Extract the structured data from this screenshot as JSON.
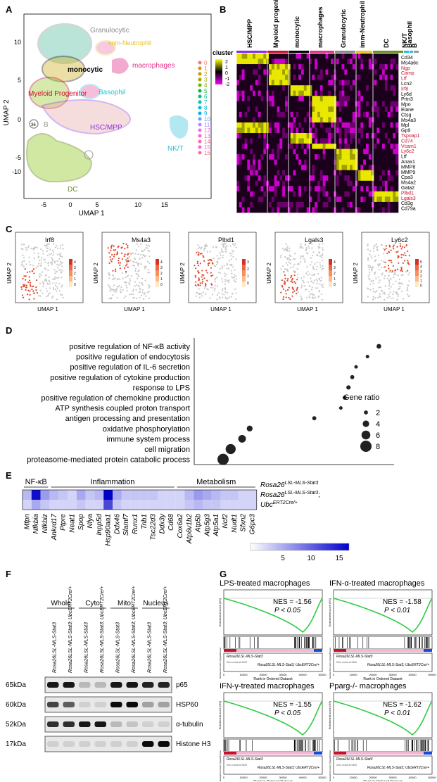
{
  "panels": {
    "A": "A",
    "B": "B",
    "C": "C",
    "D": "D",
    "E": "E",
    "F": "F",
    "G": "G"
  },
  "panelA": {
    "ylabel": "UMAP 2",
    "xlabel": "UMAP 1",
    "xticks": [
      "-5",
      "0",
      "5",
      "10",
      "15"
    ],
    "yticks": [
      "10",
      "5",
      "0",
      "-5",
      "-10"
    ],
    "clusters": [
      {
        "label": "Granulocytic",
        "color": "#8a8a8a"
      },
      {
        "label": "imm-Neutrophil",
        "color": "#e8c21a"
      },
      {
        "label": "monocytic",
        "color": "#000000"
      },
      {
        "label": "macrophages",
        "color": "#e0308a"
      },
      {
        "label": "Basophil",
        "color": "#28c0d8"
      },
      {
        "label": "Myeloid Progenitor",
        "color": "#c8102e"
      },
      {
        "label": "B",
        "color": "#999999"
      },
      {
        "label": "HSC/MPP",
        "color": "#8a2be2"
      },
      {
        "label": "NK/T",
        "color": "#28c0d8"
      },
      {
        "label": "DC",
        "color": "#6b8e23"
      }
    ],
    "legend": [
      "0",
      "1",
      "2",
      "3",
      "4",
      "5",
      "6",
      "7",
      "8",
      "9",
      "10",
      "11",
      "12",
      "13",
      "14",
      "15",
      "16"
    ],
    "legend_colors": [
      "#f8766d",
      "#e58700",
      "#c99800",
      "#a3a500",
      "#6bb100",
      "#00ba38",
      "#00bf7d",
      "#00c0af",
      "#00bcd8",
      "#00b0f6",
      "#619cff",
      "#b983ff",
      "#e76bf3",
      "#fd61d1",
      "#ff67a4",
      "#f564e3",
      "#ff6c91"
    ],
    "blob_label_36": "36"
  },
  "panelB": {
    "cluster_label": "cluster",
    "scale": [
      "2",
      "1",
      "0",
      "-1",
      "-2"
    ],
    "groups": [
      {
        "label": "HSC/MPP",
        "color": "#8a2be2"
      },
      {
        "label": "Myeloid progenitor",
        "color": "#c8102e"
      },
      {
        "label": "monocytic",
        "color": "#000000"
      },
      {
        "label": "macrophages",
        "color": "#e0308a"
      },
      {
        "label": "Granulocytic",
        "color": "#8a8a8a"
      },
      {
        "label": "imm-Neutrophil",
        "color": "#e8c21a"
      },
      {
        "label": "DC",
        "color": "#6b8e23"
      },
      {
        "label": "NK/T",
        "color": "#28c0d8"
      },
      {
        "label": "Basophil",
        "color": "#28c0d8"
      },
      {
        "label": "B",
        "color": "#999999"
      }
    ],
    "genes": [
      {
        "name": "Cd34",
        "color": "#000"
      },
      {
        "name": "Ms4a6c",
        "color": "#000"
      },
      {
        "name": "Ngp",
        "color": "#c8102e"
      },
      {
        "name": "Camp",
        "color": "#c8102e"
      },
      {
        "name": "Ltf",
        "color": "#c8102e"
      },
      {
        "name": "Lcn2",
        "color": "#000"
      },
      {
        "name": "Irf8",
        "color": "#c8102e"
      },
      {
        "name": "Ly6d",
        "color": "#000"
      },
      {
        "name": "Prtn3",
        "color": "#000"
      },
      {
        "name": "Mpo",
        "color": "#000"
      },
      {
        "name": "Elane",
        "color": "#000"
      },
      {
        "name": "Ctsg",
        "color": "#000"
      },
      {
        "name": "Ms4a3",
        "color": "#000"
      },
      {
        "name": "Mpl",
        "color": "#000"
      },
      {
        "name": "Gp9",
        "color": "#000"
      },
      {
        "name": "Tspoap1",
        "color": "#c8102e"
      },
      {
        "name": "Cd74",
        "color": "#c8102e"
      },
      {
        "name": "Vcam1",
        "color": "#c8102e"
      },
      {
        "name": "Ly6c2",
        "color": "#c8102e"
      },
      {
        "name": "Ltf",
        "color": "#000"
      },
      {
        "name": "Anax1",
        "color": "#000"
      },
      {
        "name": "MMP8",
        "color": "#000"
      },
      {
        "name": "MMP9",
        "color": "#000"
      },
      {
        "name": "Cpa3",
        "color": "#000"
      },
      {
        "name": "Ms4a2",
        "color": "#000"
      },
      {
        "name": "Gata2",
        "color": "#000"
      },
      {
        "name": "Plbd1",
        "color": "#c8102e"
      },
      {
        "name": "Lgals3",
        "color": "#c8102e"
      },
      {
        "name": "Cd3g",
        "color": "#000"
      },
      {
        "name": "Cd79a",
        "color": "#000"
      }
    ]
  },
  "panelC": {
    "ylabel": "UMAP 2",
    "xlabel": "UMAP 1",
    "plots": [
      {
        "gene": "Irf8",
        "scale": [
          "4",
          "3",
          "2",
          "1",
          "0"
        ]
      },
      {
        "gene": "Ms4a3",
        "scale": [
          "4",
          "3",
          "2",
          "1",
          "0"
        ]
      },
      {
        "gene": "Plbd1",
        "scale": [
          "3",
          "2",
          "1",
          "0"
        ]
      },
      {
        "gene": "Lgals3",
        "scale": [
          "4",
          "3",
          "2",
          "1",
          "0"
        ]
      },
      {
        "gene": "Ly6c2",
        "scale": [
          "5",
          "4",
          "3",
          "2",
          "1",
          "0"
        ]
      }
    ]
  },
  "chart_data": {
    "type": "scatter",
    "terms": [
      "positive regulation of NF-κB activity",
      "positive regulation of endocytosis",
      "positive regulation of IL-6 secretion",
      "positive regulation of cytokine production",
      "response to LPS",
      "positive regulation of chemokine production",
      "ATP synthesis coupled proton transport",
      "antigen processing and presentation",
      "oxidative phosphorylation",
      "immune system process",
      "cell migration",
      "proteasome-mediated protein catabolic process"
    ],
    "x": [
      0.92,
      0.86,
      0.8,
      0.78,
      0.76,
      0.74,
      0.72,
      0.58,
      0.24,
      0.2,
      0.14,
      0.1
    ],
    "gene_ratio": [
      2.5,
      1.5,
      1.5,
      2,
      2.2,
      2,
      1.5,
      2,
      3.5,
      5,
      7,
      8
    ],
    "legend_title": "Gene ratio",
    "legend_sizes": [
      2,
      4,
      6,
      8
    ]
  },
  "panelE": {
    "categories": [
      "NF-κB",
      "Inflammation",
      "Metabolism"
    ],
    "genes": [
      "Mfpn",
      "Nfkbia",
      "Nfkbiz",
      "Ankrd17",
      "Ptpre",
      "Neat1",
      "Spop",
      "Nfya",
      "Inpp5d",
      "Hsp90aa1",
      "Ddx46",
      "Slamf7",
      "Runx1",
      "Trib1",
      "Tsc22d3",
      "Ddx3y",
      "Cd68",
      "Cox6a2",
      "Atp6v1b2",
      "Atp5b",
      "Atp5g3",
      "Atp5a1",
      "Ncf2",
      "Nudt1",
      "Sfxn2",
      "G6pc3"
    ],
    "row1": [
      4,
      16,
      6,
      4,
      3,
      2,
      5,
      3,
      4,
      17,
      5,
      3,
      3,
      3,
      3,
      2,
      2,
      2,
      4,
      6,
      5,
      4,
      3,
      3,
      2,
      2
    ],
    "row2": [
      2,
      5,
      3,
      2,
      2,
      2,
      3,
      2,
      2,
      12,
      3,
      2,
      2,
      2,
      2,
      2,
      2,
      2,
      3,
      4,
      3,
      3,
      2,
      2,
      2,
      2
    ],
    "row_label1": "Rosa26",
    "row_label1_sup": "LSL-MLS-Stat3",
    "row_label2": "Rosa26",
    "row_label2_sup": "LSL-MLS-Stat3",
    "row_label2_b": "Ubc",
    "row_label2_b_sup": "ERT2Cre/+",
    "scale_ticks": [
      "5",
      "10",
      "15"
    ]
  },
  "panelF": {
    "groups": [
      "Whole",
      "Cyto",
      "Mito",
      "Nucleus"
    ],
    "lane_labels": [
      "Rosa26LSL-MLS-Stat3",
      "Rosa26LSL-MLS-Stat3; UbcERT2Cre/+",
      "Rosa26LSL-MLS-Stat3",
      "Rosa26LSL-MLS-Stat3; UbcERT2Cre/+",
      "Rosa26LSL-MLS-Stat3",
      "Rosa26LSL-MLS-Stat3; UbcERT2Cre/+",
      "Rosa26LSL-MLS-Stat3",
      "Rosa26LSL-MLS-Stat3; UbcERT2Cre/+"
    ],
    "blots": [
      {
        "kda": "65kDa",
        "protein": "p65"
      },
      {
        "kda": "60kDa",
        "protein": "HSP60"
      },
      {
        "kda": "52kDa",
        "protein": "α-tubulin"
      },
      {
        "kda": "17kDa",
        "protein": "Histone H3"
      }
    ]
  },
  "panelG": {
    "plots": [
      {
        "title": "LPS-treated macrophages",
        "nes": "NES = -1.56",
        "p": "P < 0.05"
      },
      {
        "title": "IFN-α-treated macrophages",
        "nes": "NES = -1.58",
        "p": "P < 0.01"
      },
      {
        "title": "IFN-γ-treated macrophages",
        "nes": "NES = -1.55",
        "p": "P < 0.05"
      },
      {
        "title": "Pparg-/- macrophages",
        "nes": "NES = -1.62",
        "p": "P < 0.01"
      }
    ],
    "ylabel_top": "Enrichment score (ES)",
    "ylabel_bottom": "Ranked list metric (Signal2Noise)",
    "xlabel": "Rank in Ordered Dataset",
    "xticks": [
      "0",
      "10000",
      "20000",
      "30000",
      "40000",
      "50000"
    ],
    "pos_label": "Rosa26LSL-MLS-Stat3",
    "neg_label": "Rosa26LSL-MLS-Stat3; UbcERT2Cre/+",
    "zero_label": "Zero cross at 9400"
  }
}
